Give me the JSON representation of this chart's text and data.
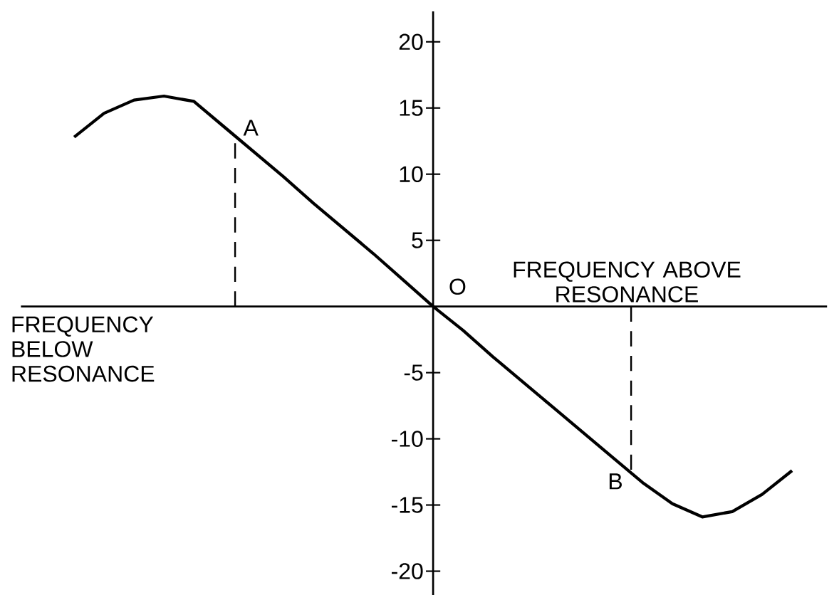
{
  "chart_data": {
    "type": "line",
    "categories": [
      null,
      null,
      null,
      null,
      null,
      null,
      null,
      null,
      null,
      null,
      null,
      null,
      null,
      null,
      null,
      null,
      null,
      null,
      null,
      null,
      null,
      null,
      null,
      null,
      null
    ],
    "series": [
      {
        "color": "#000000",
        "values": [
          12.8,
          14.6,
          15.6,
          15.9,
          15.5,
          13.6,
          11.7,
          9.8,
          7.8,
          5.9,
          4.0,
          2.0,
          0,
          -1.8,
          -3.8,
          -5.7,
          -7.6,
          -9.5,
          -11.4,
          -13.3,
          -14.9,
          -15.9,
          -15.5,
          -14.2,
          -12.4
        ]
      }
    ],
    "ylim": [
      -21.8,
      22.3
    ],
    "yticks": [
      20,
      15,
      10,
      5,
      -5,
      -10,
      -15,
      -20
    ],
    "annotations": [
      "O",
      "FREQUENCY BELOW RESONANCE",
      "FREQUENCY ABOVE RESONANCE",
      "A",
      "B"
    ],
    "marker": "none",
    "line_style": "solid"
  }
}
